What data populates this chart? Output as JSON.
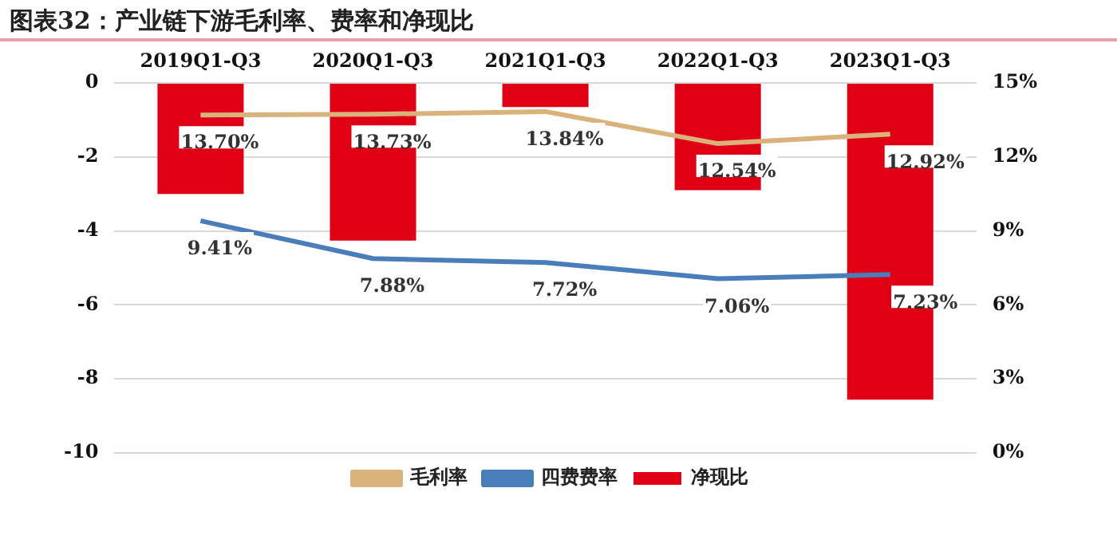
{
  "chart_data": {
    "type": "bar",
    "title": "图表32：产业链下游毛利率、费率和净现比",
    "categories": [
      "2019Q1-Q3",
      "2020Q1-Q3",
      "2021Q1-Q3",
      "2022Q1-Q3",
      "2023Q1-Q3"
    ],
    "series": [
      {
        "name": "净现比",
        "color": "#e00016",
        "values": [
          -3.0,
          -4.26,
          -0.65,
          -2.9,
          -8.56
        ]
      },
      {
        "name": "毛利率",
        "type": "line",
        "axis": "y2",
        "color": "#d9b27c",
        "values": [
          13.7,
          13.73,
          13.84,
          12.54,
          12.92
        ],
        "value_labels": [
          "13.70%",
          "13.73%",
          "13.84%",
          "12.54%",
          "12.92%"
        ]
      },
      {
        "name": "四费费率",
        "type": "line",
        "axis": "y2",
        "color": "#4a7ebb",
        "values": [
          9.41,
          7.88,
          7.72,
          7.06,
          7.23
        ],
        "value_labels": [
          "9.41%",
          "7.88%",
          "7.72%",
          "7.06%",
          "7.23%"
        ]
      }
    ],
    "ylim": [
      -10,
      0
    ],
    "yticks": [
      -10,
      -8,
      -6,
      -4,
      -2,
      0
    ],
    "y2lim": [
      0,
      15
    ],
    "y2ticks": [
      {
        "value": 0,
        "label": "0%"
      },
      {
        "value": 3,
        "label": "3%"
      },
      {
        "value": 6,
        "label": "6%"
      },
      {
        "value": 9,
        "label": "9%"
      },
      {
        "value": 12,
        "label": "12%"
      },
      {
        "value": 15,
        "label": "15%"
      }
    ],
    "grid": "y",
    "legend": "bottom",
    "marker": "none"
  }
}
